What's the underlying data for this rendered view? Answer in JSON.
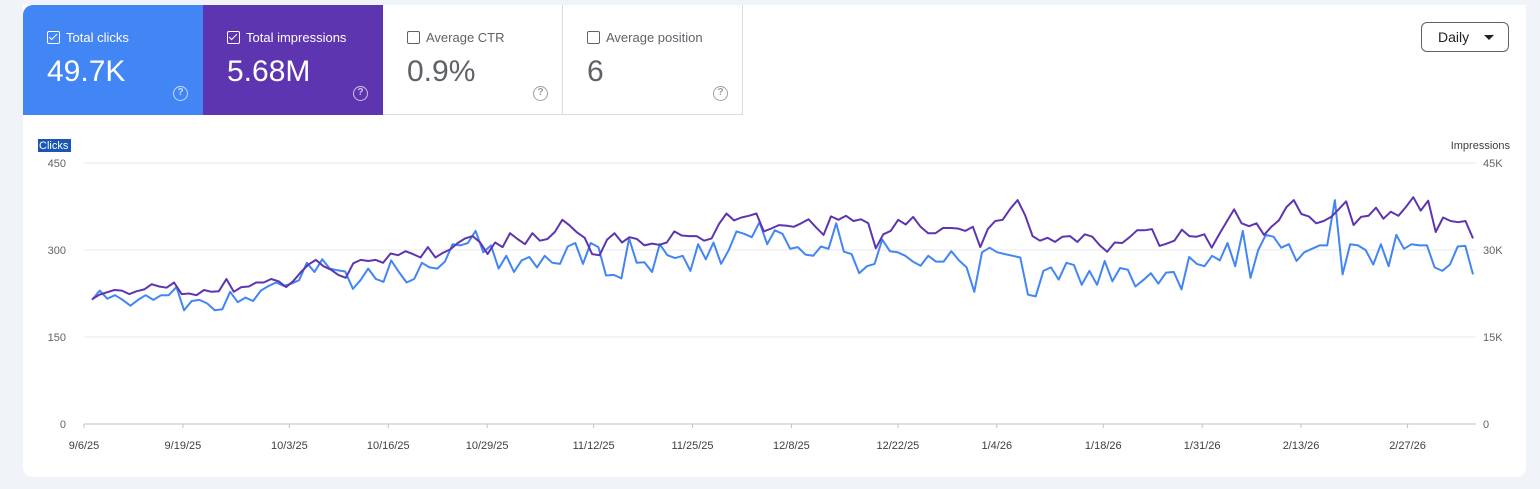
{
  "tiles": [
    {
      "label": "Total clicks",
      "value": "49.7K",
      "checked": true,
      "color": "#4285f4"
    },
    {
      "label": "Total impressions",
      "value": "5.68M",
      "checked": true,
      "color": "#5e35b1"
    },
    {
      "label": "Average CTR",
      "value": "0.9%",
      "checked": false
    },
    {
      "label": "Average position",
      "value": "6",
      "checked": false
    }
  ],
  "help_glyph": "?",
  "granularity": {
    "selected": "Daily"
  },
  "chart_data": {
    "type": "line",
    "y_left": {
      "label": "Clicks",
      "ticks": [
        "450",
        "300",
        "150",
        "0"
      ],
      "range": [
        0,
        450
      ]
    },
    "y_right": {
      "label": "Impressions",
      "ticks": [
        "45K",
        "30K",
        "15K",
        "0"
      ],
      "range": [
        0,
        45000
      ]
    },
    "x_ticks": [
      "9/6/25",
      "9/19/25",
      "10/3/25",
      "10/16/25",
      "10/29/25",
      "11/12/25",
      "11/25/25",
      "12/8/25",
      "12/22/25",
      "1/4/26",
      "1/18/26",
      "1/31/26",
      "2/13/26",
      "2/27/26"
    ],
    "x_range": [
      "9/6/25",
      "3/8/26"
    ],
    "grid": true,
    "series": [
      {
        "name": "Clicks",
        "axis": "left",
        "color": "#4285f4",
        "values": [
          214,
          230,
          216,
          222,
          214,
          204,
          214,
          222,
          214,
          222,
          222,
          236,
          196,
          212,
          214,
          208,
          196,
          198,
          228,
          210,
          218,
          212,
          230,
          238,
          244,
          238,
          242,
          248,
          278,
          262,
          284,
          268,
          265,
          263,
          233,
          248,
          268,
          250,
          245,
          282,
          262,
          244,
          250,
          278,
          270,
          268,
          280,
          310,
          308,
          312,
          333,
          296,
          308,
          268,
          290,
          262,
          282,
          288,
          270,
          290,
          278,
          276,
          306,
          312,
          276,
          312,
          305,
          256,
          257,
          251,
          320,
          278,
          279,
          262,
          310,
          291,
          286,
          290,
          264,
          310,
          284,
          313,
          276,
          300,
          332,
          328,
          322,
          348,
          310,
          334,
          328,
          302,
          305,
          292,
          290,
          306,
          302,
          346,
          297,
          293,
          260,
          272,
          276,
          318,
          298,
          296,
          290,
          280,
          273,
          290,
          280,
          280,
          298,
          282,
          270,
          228,
          296,
          304,
          296,
          293,
          290,
          287,
          223,
          220,
          264,
          270,
          249,
          278,
          274,
          240,
          264,
          240,
          281,
          246,
          269,
          266,
          237,
          248,
          260,
          242,
          261,
          262,
          232,
          288,
          276,
          272,
          290,
          282,
          312,
          272,
          333,
          252,
          300,
          326,
          323,
          304,
          310,
          281,
          296,
          302,
          308,
          308,
          386,
          258,
          310,
          308,
          300,
          275,
          310,
          272,
          326,
          302,
          310,
          308,
          308,
          270,
          264,
          275,
          306,
          307,
          258
        ]
      },
      {
        "name": "Impressions",
        "axis": "right",
        "color": "#5e35b1",
        "values": [
          21500,
          22300,
          22700,
          23100,
          23000,
          22400,
          22900,
          23200,
          24100,
          23700,
          23500,
          24400,
          22400,
          22500,
          22200,
          23100,
          22800,
          22900,
          25000,
          22800,
          23600,
          23700,
          24400,
          24400,
          25000,
          24600,
          23600,
          24700,
          26200,
          27500,
          28300,
          27200,
          26600,
          25700,
          25200,
          27700,
          28300,
          28100,
          28300,
          27800,
          29400,
          29100,
          29800,
          29300,
          28700,
          30500,
          28700,
          29500,
          30100,
          31200,
          32000,
          32400,
          31300,
          29300,
          31300,
          30500,
          32900,
          31900,
          31000,
          32900,
          31600,
          31900,
          33100,
          35200,
          34200,
          33000,
          32100,
          29300,
          29100,
          31800,
          32900,
          31300,
          32200,
          31900,
          30800,
          31100,
          30900,
          31300,
          33200,
          32500,
          32400,
          32400,
          31600,
          32000,
          34500,
          36300,
          35100,
          35600,
          35900,
          36300,
          33200,
          33700,
          34300,
          34200,
          34000,
          34600,
          35300,
          33900,
          32600,
          35800,
          35200,
          35900,
          35000,
          35300,
          34600,
          30300,
          32700,
          33300,
          35200,
          34400,
          35700,
          34000,
          32900,
          32900,
          33800,
          33800,
          33700,
          33300,
          34000,
          30500,
          33600,
          35000,
          35200,
          37100,
          38600,
          36000,
          32400,
          31600,
          32100,
          31400,
          32300,
          32400,
          31400,
          32700,
          32300,
          30800,
          29700,
          31300,
          31200,
          32200,
          33400,
          33400,
          33600,
          30700,
          31100,
          31600,
          33500,
          32400,
          32300,
          32700,
          30400,
          32700,
          34900,
          37000,
          34600,
          34100,
          34600,
          32600,
          34000,
          35100,
          37400,
          38600,
          36200,
          35800,
          34600,
          35000,
          35700,
          37000,
          38400,
          34300,
          35700,
          35900,
          37300,
          35400,
          36600,
          35900,
          37400,
          39100,
          36800,
          38500,
          33100,
          35600,
          35000,
          34800,
          35000,
          32000
        ]
      }
    ]
  }
}
